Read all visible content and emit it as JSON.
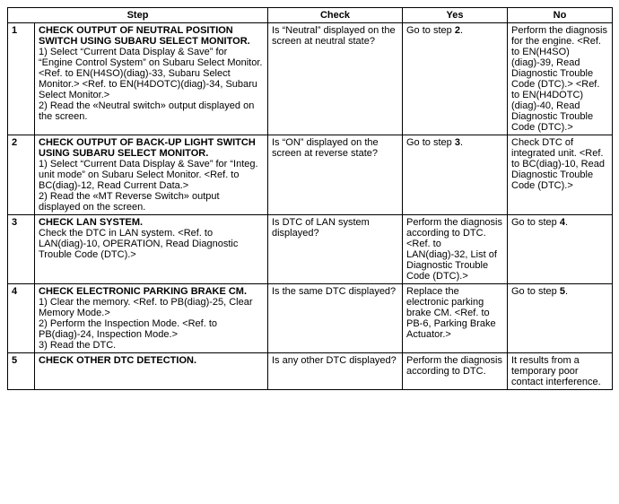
{
  "headers": {
    "step": "Step",
    "check": "Check",
    "yes": "Yes",
    "no": "No"
  },
  "rows": [
    {
      "num": "1",
      "title": "CHECK OUTPUT OF NEUTRAL POSITION SWITCH USING SUBARU SELECT MONITOR.",
      "body": "1)   Select “Current Data Display & Save” for “Engine Control System” on Subaru Select Monitor. <Ref. to EN(H4SO)(diag)-33, Subaru Select Monitor.> <Ref. to EN(H4DOTC)(diag)-34, Subaru Select Monitor.>\n2)   Read the «Neutral switch» output displayed on the screen.",
      "check": "Is “Neutral” displayed on the screen at neutral state?",
      "yes": "Go to step 2.",
      "no": "Perform the diagnosis for the engine. <Ref. to EN(H4SO)(diag)-39, Read Diagnostic Trouble Code (DTC).> <Ref. to EN(H4DOTC)(diag)-40, Read Diagnostic Trouble Code (DTC).>"
    },
    {
      "num": "2",
      "title": "CHECK OUTPUT OF BACK-UP LIGHT SWITCH USING SUBARU SELECT MONITOR.",
      "body": "1)   Select “Current Data Display & Save” for “Integ. unit mode” on Subaru Select Monitor. <Ref. to BC(diag)-12, Read Current Data.>\n2)   Read the «MT Reverse Switch» output displayed on the screen.",
      "check": "Is “ON” displayed on the screen at reverse state?",
      "yes": "Go to step 3.",
      "no": "Check DTC of integrated unit. <Ref. to BC(diag)-10, Read Diagnostic Trouble Code (DTC).>"
    },
    {
      "num": "3",
      "title": "CHECK LAN SYSTEM.",
      "body": "Check the DTC in LAN system. <Ref. to LAN(diag)-10, OPERATION, Read Diagnostic Trouble Code (DTC).>",
      "check": "Is DTC of LAN system displayed?",
      "yes": "Perform the diagnosis according to DTC. <Ref. to LAN(diag)-32, List of Diagnostic Trouble Code (DTC).>",
      "no": "Go to step 4."
    },
    {
      "num": "4",
      "title": "CHECK ELECTRONIC PARKING BRAKE CM.",
      "body": "1)   Clear the memory. <Ref. to PB(diag)-25, Clear Memory Mode.>\n2)   Perform the Inspection Mode. <Ref. to PB(diag)-24, Inspection Mode.>\n3)   Read the DTC.",
      "check": "Is the same DTC displayed?",
      "yes": "Replace the electronic parking brake CM. <Ref. to PB-6, Parking Brake Actuator.>",
      "no": "Go to step 5."
    },
    {
      "num": "5",
      "title": "CHECK OTHER DTC DETECTION.",
      "body": "",
      "check": "Is any other DTC displayed?",
      "yes": "Perform the diagnosis according to DTC.",
      "no": "It results from a temporary poor contact interference."
    }
  ]
}
